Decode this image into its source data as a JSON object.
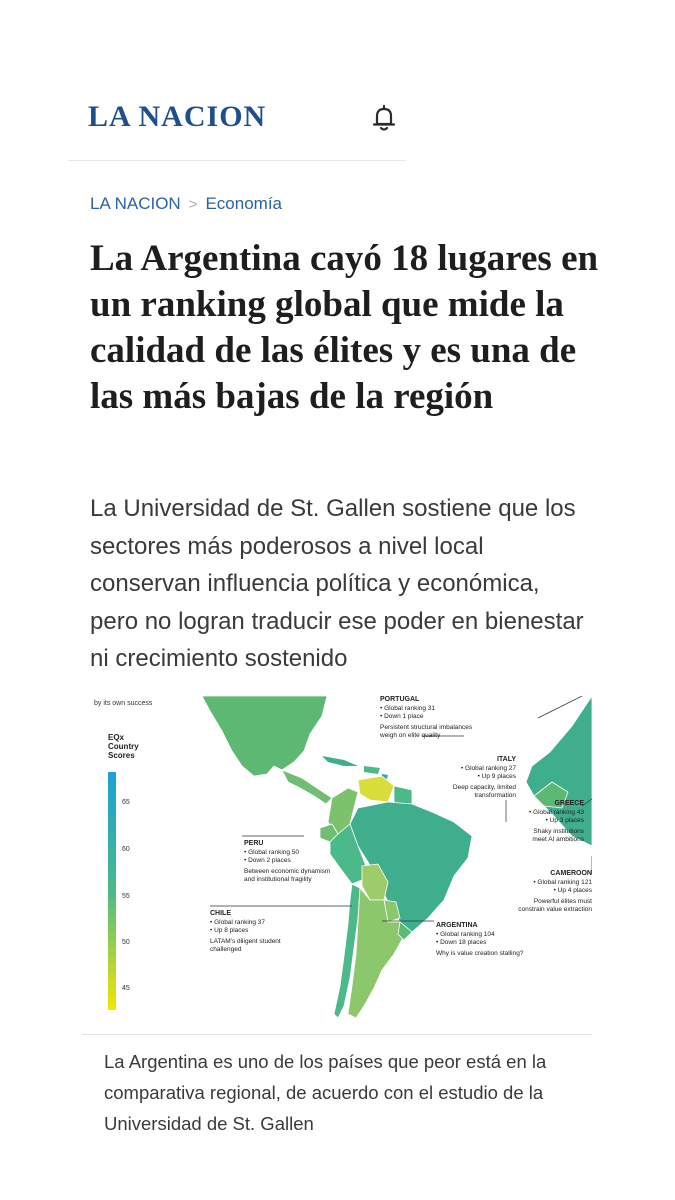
{
  "header": {
    "logo_text": "LA NACION",
    "notifications_icon": "bell-icon"
  },
  "breadcrumb": {
    "items": [
      "LA NACION",
      "Economía"
    ],
    "separator": ">"
  },
  "article": {
    "headline": "La Argentina cayó 18 lugares en un ranking global que mide la calidad de las élites y es una de las más bajas de la región",
    "lede": "La Universidad de St. Gallen sostiene que los sectores más poderosos a nivel local conservan influencia política y económica, pero no logran traducir ese poder en bienestar ni crecimiento sostenido",
    "caption": "La Argentina es uno de los países que peor está en la comparativa regional, de acuerdo con el estudio de la Universidad de St. Gallen"
  },
  "infographic": {
    "top_note": "by its own success",
    "legend_title": [
      "EQx",
      "Country",
      "Scores"
    ],
    "scale_ticks": [
      "65",
      "60",
      "55",
      "50",
      "45"
    ],
    "countries": [
      {
        "name": "PORTUGAL",
        "lines": [
          "• Global ranking 31",
          "• Down 1 place"
        ],
        "note": [
          "Persistent structural imbalances",
          "weigh on elite quality"
        ]
      },
      {
        "name": "ITALY",
        "lines": [
          "• Global ranking 27",
          "• Up 9 places"
        ],
        "note": [
          "Deep capacity, limited",
          "transformation"
        ]
      },
      {
        "name": "GREECE",
        "lines": [
          "• Global ranking 43",
          "• Up 3 places"
        ],
        "note": [
          "Shaky institutions",
          "meet AI ambitions"
        ]
      },
      {
        "name": "CAMEROON",
        "lines": [
          "• Global ranking 121",
          "• Up 4 places"
        ],
        "note": [
          "Powerful élites must",
          "constrain value extraction"
        ]
      },
      {
        "name": "PERU",
        "lines": [
          "• Global ranking 50",
          "• Down 2 places"
        ],
        "note": [
          "Between economic dynamism",
          "and institutional fragility"
        ]
      },
      {
        "name": "CHILE",
        "lines": [
          "• Global ranking 37",
          "• Up 8 places"
        ],
        "note": [
          "LATAM's diligent student",
          "challenged"
        ]
      },
      {
        "name": "ARGENTINA",
        "lines": [
          "• Global ranking 104",
          "• Down 18 places"
        ],
        "note": [
          "Why is value creation stalling?"
        ]
      }
    ],
    "colors": {
      "scale_top": "#1aa0d8",
      "scale_mid": "#4cb98a",
      "scale_bottom": "#f2e600",
      "land_green": "#5db874",
      "land_teal": "#3fae8c",
      "land_light": "#9fcc6a",
      "venezuela": "#d8dd3a",
      "label_line": "#333333"
    }
  }
}
